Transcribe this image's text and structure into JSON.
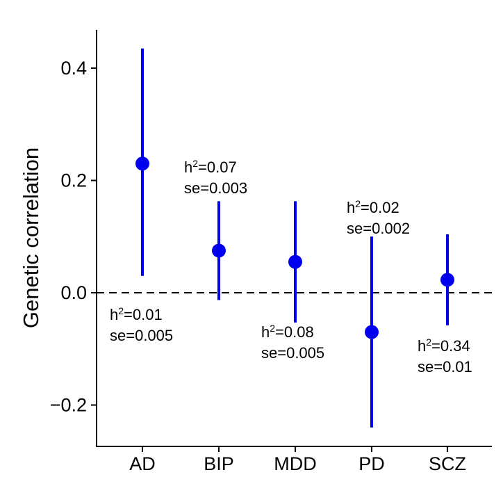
{
  "chart_data": {
    "type": "errorbar",
    "ylabel": "Genetic correlation",
    "xlabel": "",
    "ylim": [
      -0.27,
      0.47
    ],
    "yticks": [
      {
        "value": -0.2,
        "label": "−0.2"
      },
      {
        "value": 0.0,
        "label": "0.0"
      },
      {
        "value": 0.2,
        "label": "0.2"
      },
      {
        "value": 0.4,
        "label": "0.4"
      }
    ],
    "reference_line": {
      "y": 0,
      "style": "dashed"
    },
    "color": "#0000ee",
    "points": [
      {
        "category": "AD",
        "estimate": 0.23,
        "lower": 0.03,
        "upper": 0.435,
        "h2_label": "h",
        "h2_sup": "2",
        "h2_value": "=0.01",
        "se_label": "se=0.005",
        "label_position": "below"
      },
      {
        "category": "BIP",
        "estimate": 0.075,
        "lower": -0.013,
        "upper": 0.163,
        "h2_label": "h",
        "h2_sup": "2",
        "h2_value": "=0.07",
        "se_label": "se=0.003",
        "label_position": "above"
      },
      {
        "category": "MDD",
        "estimate": 0.055,
        "lower": -0.053,
        "upper": 0.163,
        "h2_label": "h",
        "h2_sup": "2",
        "h2_value": "=0.08",
        "se_label": "se=0.005",
        "label_position": "below"
      },
      {
        "category": "PD",
        "estimate": -0.07,
        "lower": -0.24,
        "upper": 0.1,
        "h2_label": "h",
        "h2_sup": "2",
        "h2_value": "=0.02",
        "se_label": "se=0.002",
        "label_position": "above"
      },
      {
        "category": "SCZ",
        "estimate": 0.023,
        "lower": -0.058,
        "upper": 0.104,
        "h2_label": "h",
        "h2_sup": "2",
        "h2_value": "=0.34",
        "se_label": "se=0.01",
        "label_position": "below"
      }
    ]
  }
}
